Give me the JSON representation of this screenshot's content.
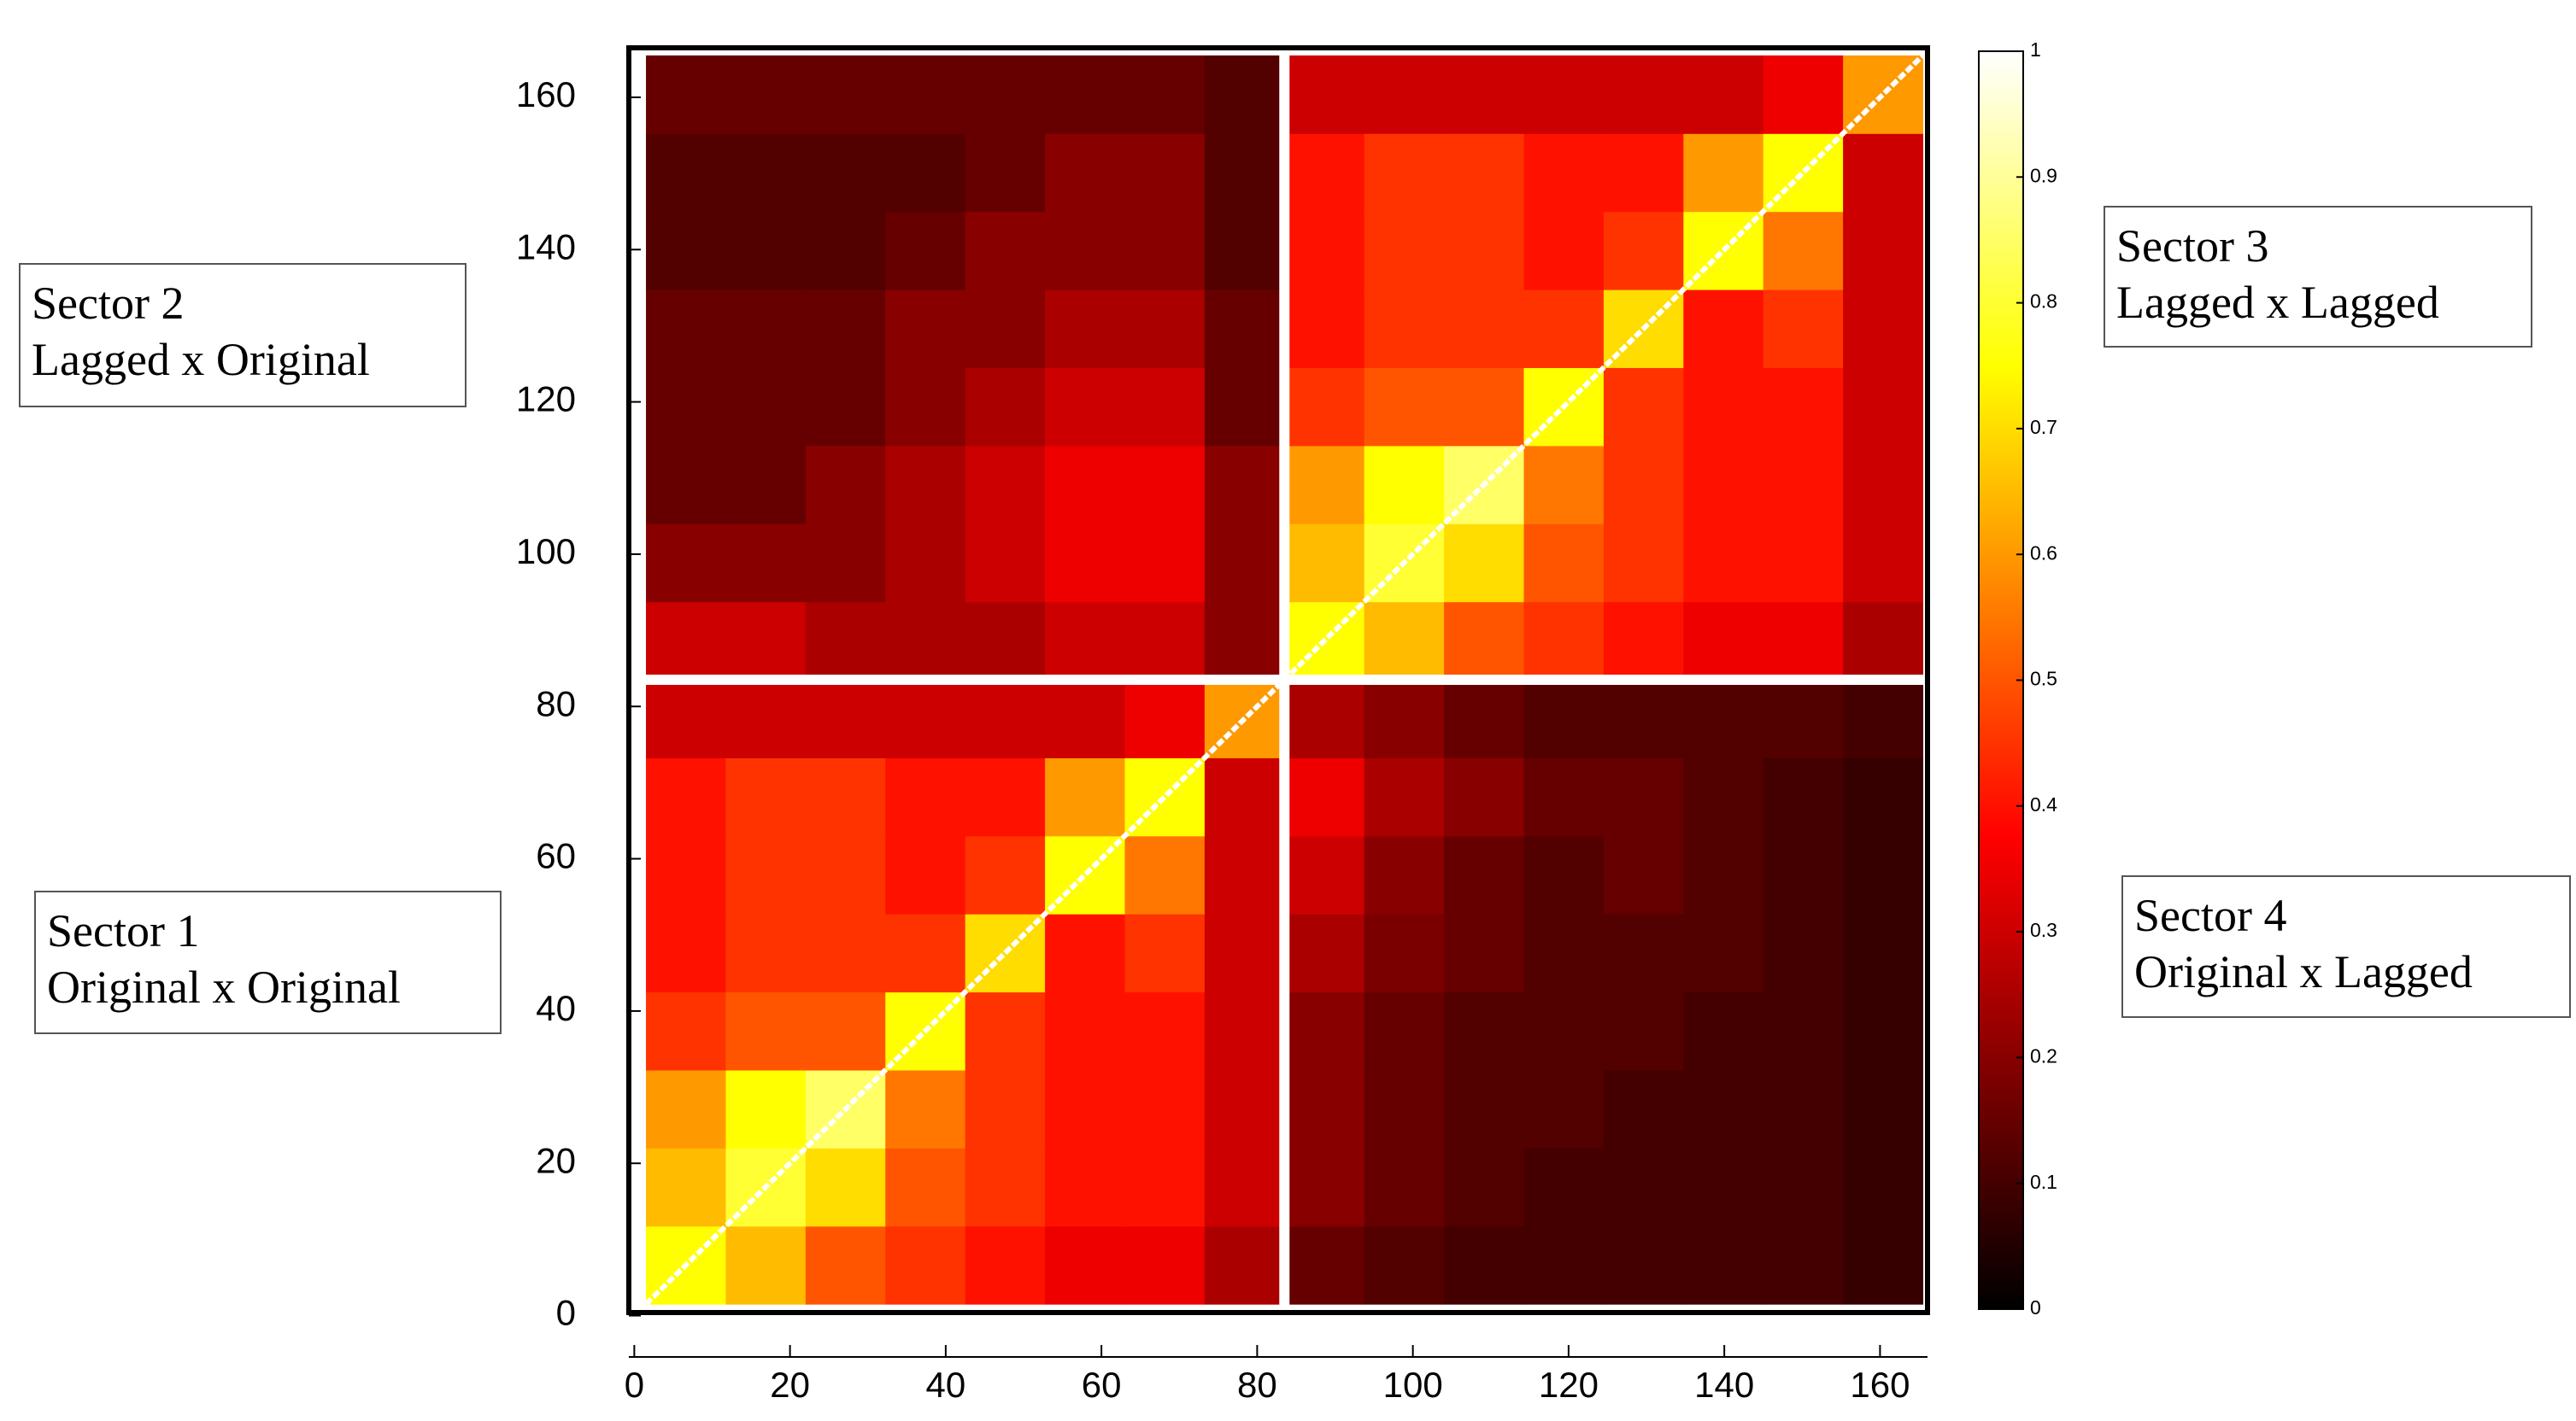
{
  "chart_data": {
    "type": "heatmap",
    "x": [
      6.625,
      16.875,
      27.125,
      37.375,
      47.625,
      57.875,
      68.125,
      78.375,
      88.625,
      98.875,
      109.125,
      119.375,
      129.625,
      139.875,
      150.125,
      160.375
    ],
    "y": [
      6.625,
      16.875,
      27.125,
      37.375,
      47.625,
      57.875,
      68.125,
      78.375,
      88.625,
      98.875,
      109.125,
      119.375,
      129.625,
      139.875,
      150.125,
      160.375
    ],
    "z": [
      [
        0.75,
        0.65,
        0.5,
        0.45,
        0.4,
        0.35,
        0.35,
        0.25,
        0.15,
        0.12,
        0.1,
        0.1,
        0.1,
        0.1,
        0.1,
        0.08
      ],
      [
        0.65,
        0.8,
        0.7,
        0.5,
        0.45,
        0.4,
        0.4,
        0.3,
        0.2,
        0.15,
        0.12,
        0.1,
        0.1,
        0.1,
        0.1,
        0.08
      ],
      [
        0.6,
        0.75,
        0.85,
        0.55,
        0.45,
        0.4,
        0.4,
        0.3,
        0.2,
        0.15,
        0.12,
        0.12,
        0.1,
        0.1,
        0.1,
        0.08
      ],
      [
        0.45,
        0.5,
        0.5,
        0.75,
        0.45,
        0.4,
        0.4,
        0.3,
        0.2,
        0.15,
        0.12,
        0.12,
        0.12,
        0.1,
        0.1,
        0.08
      ],
      [
        0.4,
        0.45,
        0.45,
        0.45,
        0.7,
        0.4,
        0.45,
        0.3,
        0.25,
        0.18,
        0.15,
        0.12,
        0.12,
        0.12,
        0.1,
        0.08
      ],
      [
        0.4,
        0.45,
        0.45,
        0.4,
        0.45,
        0.75,
        0.55,
        0.3,
        0.3,
        0.2,
        0.15,
        0.12,
        0.15,
        0.12,
        0.1,
        0.08
      ],
      [
        0.4,
        0.45,
        0.45,
        0.4,
        0.4,
        0.6,
        0.75,
        0.3,
        0.35,
        0.25,
        0.2,
        0.15,
        0.15,
        0.12,
        0.1,
        0.08
      ],
      [
        0.3,
        0.3,
        0.3,
        0.3,
        0.3,
        0.3,
        0.35,
        0.6,
        0.25,
        0.2,
        0.15,
        0.12,
        0.12,
        0.12,
        0.12,
        0.1
      ],
      [
        0.3,
        0.3,
        0.25,
        0.25,
        0.25,
        0.3,
        0.3,
        0.2,
        0.75,
        0.65,
        0.5,
        0.45,
        0.4,
        0.35,
        0.35,
        0.25
      ],
      [
        0.2,
        0.2,
        0.2,
        0.25,
        0.3,
        0.35,
        0.35,
        0.2,
        0.65,
        0.8,
        0.7,
        0.5,
        0.45,
        0.4,
        0.4,
        0.3
      ],
      [
        0.15,
        0.15,
        0.2,
        0.25,
        0.3,
        0.35,
        0.35,
        0.2,
        0.6,
        0.75,
        0.85,
        0.55,
        0.45,
        0.4,
        0.4,
        0.3
      ],
      [
        0.15,
        0.15,
        0.15,
        0.2,
        0.25,
        0.3,
        0.3,
        0.15,
        0.45,
        0.5,
        0.5,
        0.75,
        0.45,
        0.4,
        0.4,
        0.3
      ],
      [
        0.15,
        0.15,
        0.15,
        0.2,
        0.2,
        0.25,
        0.25,
        0.15,
        0.4,
        0.45,
        0.45,
        0.45,
        0.7,
        0.4,
        0.45,
        0.3
      ],
      [
        0.12,
        0.12,
        0.12,
        0.15,
        0.2,
        0.2,
        0.2,
        0.12,
        0.4,
        0.45,
        0.45,
        0.4,
        0.45,
        0.75,
        0.55,
        0.3
      ],
      [
        0.12,
        0.12,
        0.12,
        0.12,
        0.15,
        0.2,
        0.2,
        0.12,
        0.4,
        0.45,
        0.45,
        0.4,
        0.4,
        0.6,
        0.75,
        0.3
      ],
      [
        0.15,
        0.15,
        0.15,
        0.15,
        0.15,
        0.15,
        0.15,
        0.12,
        0.3,
        0.3,
        0.3,
        0.3,
        0.3,
        0.3,
        0.35,
        0.6
      ]
    ],
    "colormap": "hot",
    "xlim": [
      -0.7,
      166.1
    ],
    "ylim": [
      0.4,
      166.5
    ],
    "xticks": [
      0,
      20,
      40,
      60,
      80,
      100,
      120,
      140,
      160
    ],
    "yticks": [
      0,
      20,
      40,
      60,
      80,
      100,
      120,
      140,
      160
    ],
    "clim": [
      0,
      1
    ],
    "cticks": [
      0,
      0.1,
      0.2,
      0.3,
      0.4,
      0.5,
      0.6,
      0.7,
      0.8,
      0.9,
      1
    ],
    "annotations": [
      {
        "lines": [
          "Sector 2",
          "Lagged x Original"
        ]
      },
      {
        "lines": [
          "Sector 1",
          "Original x Original"
        ]
      },
      {
        "lines": [
          "Sector 3",
          "Lagged x Lagged"
        ]
      },
      {
        "lines": [
          "Sector 4",
          "Original x Lagged"
        ]
      }
    ]
  }
}
